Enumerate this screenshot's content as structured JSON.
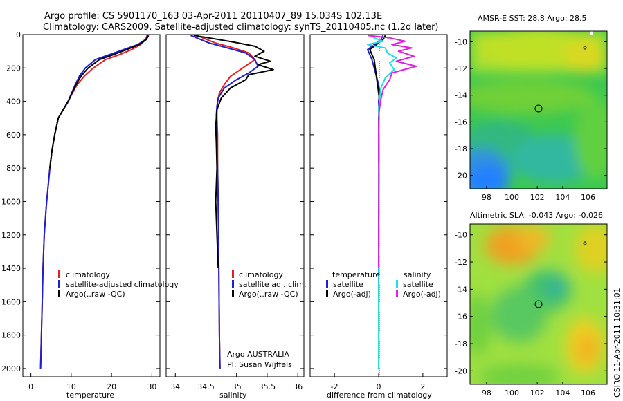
{
  "title": {
    "line1": "Argo profile: CS 5901170_163 03-Apr-2011 20110407_89 15.034S 102.13E",
    "line2": "Climatology: CARS2009. Satellite-adjusted climatology: synTS_20110405.nc (1.2d later)"
  },
  "side_stamp": "CSIRO 11-Apr-2011 10:31:01",
  "colors": {
    "climatology": "#e02020",
    "satellite": "#1f1fd0",
    "argo": "#000000",
    "sal_satellite": "#20e0e0",
    "sal_argo": "#e020e0"
  },
  "chart_data": [
    {
      "id": "temperature",
      "type": "line",
      "xlabel": "temperature",
      "xlim": [
        -2,
        32
      ],
      "xticks": [
        0,
        10,
        20,
        30
      ],
      "ylim": [
        2050,
        0
      ],
      "yticks": [
        0,
        200,
        400,
        600,
        800,
        1000,
        1200,
        1400,
        1600,
        1800,
        2000
      ],
      "legend": [
        "climatology",
        "satellite-adjusted climatology",
        "Argo(..raw -QC)"
      ],
      "series": [
        {
          "name": "climatology",
          "color": "#e02020",
          "x": [
            28.8,
            28.5,
            27.2,
            25.0,
            22.0,
            18.5,
            15.5,
            13.2,
            11.5,
            10.3,
            9.2,
            8.0,
            6.8,
            5.9,
            5.2,
            4.7,
            4.3,
            3.9,
            3.6,
            3.3,
            3.0,
            2.8,
            2.6,
            2.4
          ],
          "y": [
            5,
            30,
            60,
            90,
            120,
            150,
            200,
            250,
            300,
            350,
            400,
            450,
            500,
            600,
            700,
            800,
            900,
            1000,
            1100,
            1200,
            1400,
            1600,
            1800,
            2000
          ]
        },
        {
          "name": "satellite-adjusted climatology",
          "color": "#1f1fd0",
          "x": [
            29.0,
            28.4,
            26.5,
            23.0,
            19.5,
            16.0,
            13.5,
            12.0,
            11.0,
            10.1,
            9.2,
            8.0,
            6.8,
            5.9,
            5.2,
            4.7,
            4.3,
            3.9,
            3.6,
            3.3,
            3.0,
            2.8,
            2.6,
            2.4
          ],
          "y": [
            5,
            30,
            60,
            90,
            120,
            150,
            200,
            250,
            300,
            350,
            400,
            450,
            500,
            600,
            700,
            800,
            900,
            1000,
            1100,
            1200,
            1400,
            1600,
            1800,
            2000
          ]
        },
        {
          "name": "Argo(..raw -QC)",
          "color": "#000000",
          "x": [
            29.2,
            28.6,
            26.8,
            23.8,
            20.5,
            17.0,
            14.2,
            12.4,
            11.2,
            10.2,
            9.3,
            8.0,
            6.8,
            5.9,
            5.2,
            4.7
          ],
          "y": [
            5,
            30,
            60,
            90,
            120,
            150,
            200,
            250,
            300,
            350,
            400,
            450,
            500,
            600,
            700,
            800
          ]
        }
      ]
    },
    {
      "id": "salinity",
      "type": "line",
      "xlabel": "salinity",
      "xlim": [
        33.85,
        36.1
      ],
      "xticks": [
        34,
        34.5,
        35,
        35.5,
        36
      ],
      "xticklabels": [
        "34",
        "34.5",
        "35",
        "35.5",
        "36"
      ],
      "ylim": [
        2050,
        0
      ],
      "legend": [
        "climatology",
        "satellite adj. clim.",
        "Argo(..raw -QC)"
      ],
      "annotation": [
        "Argo AUSTRALIA",
        "PI: Susan Wijffels"
      ],
      "series": [
        {
          "name": "climatology",
          "color": "#e02020",
          "x": [
            34.35,
            34.45,
            34.65,
            34.95,
            35.2,
            35.3,
            35.1,
            34.9,
            34.8,
            34.72,
            34.69,
            34.68,
            34.68,
            34.69,
            34.69,
            34.7,
            34.71,
            34.72,
            34.73
          ],
          "y": [
            5,
            20,
            50,
            80,
            110,
            150,
            200,
            250,
            300,
            350,
            400,
            450,
            500,
            600,
            800,
            1000,
            1400,
            1800,
            2000
          ]
        },
        {
          "name": "satellite adj. clim.",
          "color": "#1f1fd0",
          "x": [
            34.25,
            34.35,
            34.55,
            34.85,
            35.15,
            35.3,
            35.35,
            35.2,
            35.0,
            34.8,
            34.7,
            34.68,
            34.67,
            34.68,
            34.69,
            34.7,
            34.71,
            34.72,
            34.73
          ],
          "y": [
            5,
            20,
            50,
            80,
            110,
            150,
            190,
            230,
            270,
            320,
            380,
            430,
            480,
            600,
            800,
            1000,
            1400,
            1800,
            2000
          ]
        },
        {
          "name": "Argo(..raw -QC)",
          "color": "#000000",
          "x": [
            34.3,
            34.55,
            34.95,
            35.3,
            35.45,
            35.3,
            35.55,
            35.35,
            35.6,
            35.2,
            35.15,
            34.9,
            34.75,
            34.68,
            34.66,
            34.67,
            34.68,
            34.66,
            34.68,
            34.7
          ],
          "y": [
            5,
            20,
            45,
            70,
            100,
            130,
            160,
            180,
            210,
            240,
            270,
            320,
            380,
            450,
            550,
            650,
            800,
            1000,
            1200,
            1400
          ]
        }
      ]
    },
    {
      "id": "difference",
      "type": "line",
      "xlabel": "difference from climatology",
      "xlim": [
        -3.1,
        3.1
      ],
      "xticks": [
        -2,
        0,
        2
      ],
      "ylim": [
        2050,
        0
      ],
      "legend_left": {
        "heading": "temperature",
        "items": [
          "satellite",
          "Argo(-adj)"
        ]
      },
      "legend_right": {
        "heading": "salinity",
        "items": [
          "satellite",
          "Argo(-adj)"
        ]
      },
      "series": [
        {
          "name": "temperature satellite",
          "color": "#1f1fd0",
          "x": [
            0.2,
            0.1,
            -0.2,
            -0.5,
            -0.4,
            -0.3,
            -0.2,
            -0.1,
            0.0,
            0.05,
            0.0,
            0.02,
            0.0,
            0.01,
            0.0,
            0.0
          ],
          "y": [
            5,
            30,
            60,
            90,
            120,
            150,
            200,
            250,
            300,
            350,
            400,
            500,
            600,
            800,
            1200,
            2000
          ]
        },
        {
          "name": "temperature Argo(-adj)",
          "color": "#000000",
          "x": [
            0.3,
            0.2,
            -0.1,
            -0.4,
            -0.3,
            -0.2,
            -0.15,
            -0.1,
            -0.05,
            0.0,
            0.05,
            0.0,
            0.02,
            0.0,
            0.0
          ],
          "y": [
            5,
            30,
            60,
            90,
            120,
            150,
            200,
            250,
            300,
            350,
            400,
            500,
            600,
            800,
            1200
          ]
        },
        {
          "name": "salinity satellite",
          "color": "#20e0e0",
          "x": [
            -0.3,
            -0.2,
            0.2,
            -0.5,
            0.3,
            0.4,
            0.8,
            0.5,
            0.7,
            0.3,
            0.1,
            0.05,
            0.0,
            0.02,
            0.0,
            0.01,
            0.0,
            0.0
          ],
          "y": [
            5,
            20,
            40,
            60,
            80,
            110,
            140,
            170,
            210,
            260,
            320,
            380,
            450,
            550,
            800,
            1200,
            1600,
            2000
          ]
        },
        {
          "name": "salinity Argo(-adj)",
          "color": "#e020e0",
          "x": [
            -0.5,
            0.5,
            1.2,
            0.6,
            1.5,
            0.9,
            1.6,
            0.8,
            1.7,
            0.6,
            0.5,
            0.2,
            0.1,
            0.02,
            0.0,
            0.01,
            0.0
          ],
          "y": [
            5,
            20,
            40,
            60,
            80,
            100,
            130,
            160,
            190,
            230,
            270,
            330,
            390,
            460,
            600,
            900,
            1400
          ]
        }
      ]
    },
    {
      "id": "sst-map",
      "type": "heatmap",
      "title": "AMSR-E SST: 28.8 Argo: 28.5",
      "xlim": [
        96.7,
        107.5
      ],
      "xticks": [
        98,
        100,
        102,
        104,
        106
      ],
      "ylim": [
        -21,
        -9.2
      ],
      "yticks": [
        -10,
        -12,
        -14,
        -16,
        -18,
        -20
      ],
      "argo_position": [
        102.13,
        -15.034
      ]
    },
    {
      "id": "sla-map",
      "type": "heatmap",
      "title": "Altimetric SLA: -0.043 Argo: -0.026",
      "xlim": [
        96.7,
        107.5
      ],
      "xticks": [
        98,
        100,
        102,
        104,
        106
      ],
      "ylim": [
        -21,
        -9.2
      ],
      "yticks": [
        -10,
        -12,
        -14,
        -16,
        -18,
        -20
      ],
      "argo_position": [
        102.13,
        -15.034
      ]
    }
  ]
}
